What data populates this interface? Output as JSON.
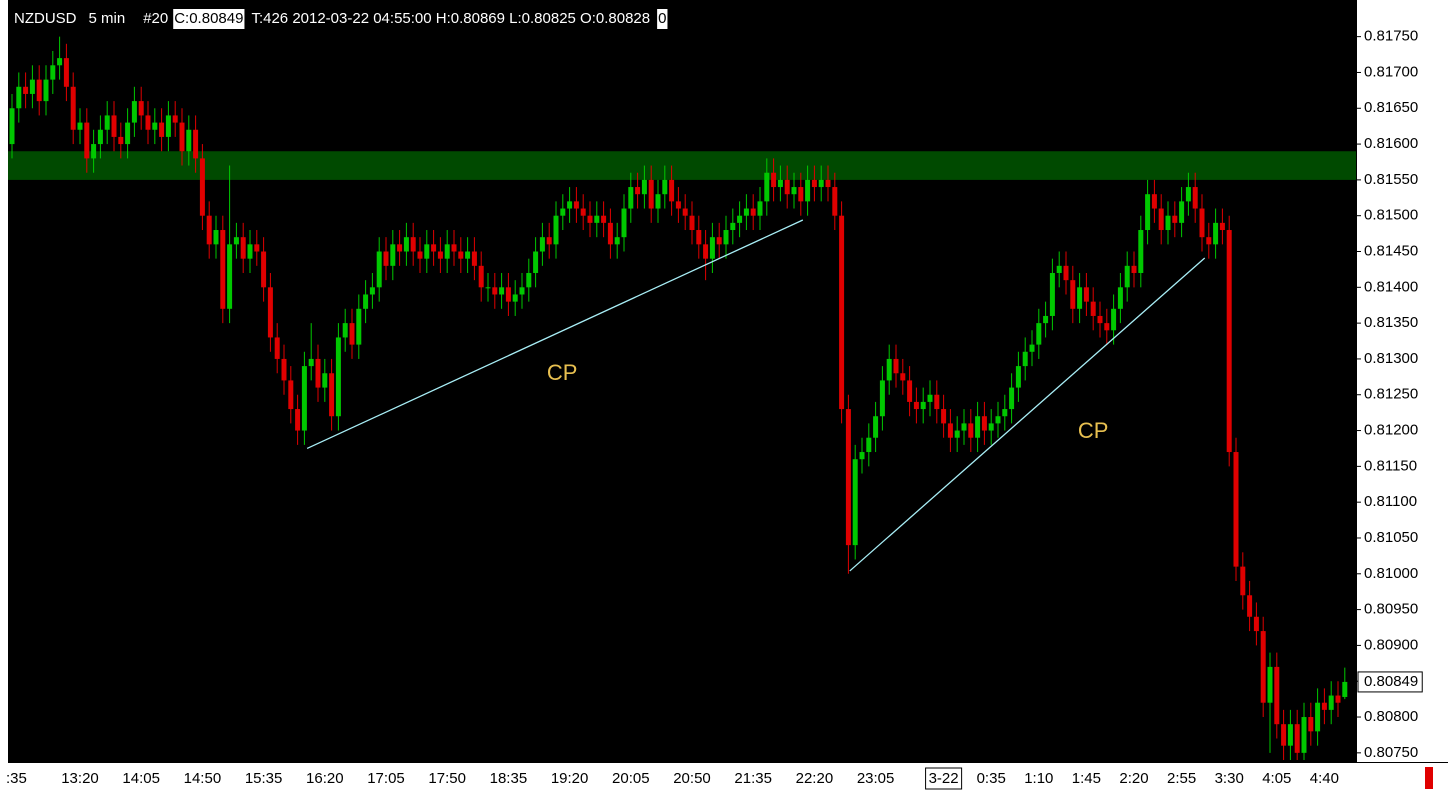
{
  "header": {
    "symbol": "NZDUSD",
    "interval": "5 min",
    "bar": "#20",
    "close_label": "C:0.80849",
    "info": "T:426 2012-03-22 04:55:00 H:0.80869 L:0.80825 O:0.80828",
    "trail": "0"
  },
  "chart_data": {
    "type": "candlestick",
    "categories": [
      null,
      ":35",
      null,
      null,
      null,
      null,
      null,
      null,
      null,
      null,
      "13:20",
      null,
      null,
      null,
      null,
      null,
      null,
      null,
      null,
      "14:05",
      null,
      null,
      null,
      null,
      null,
      null,
      null,
      null,
      "14:50",
      null,
      null,
      null,
      null,
      null,
      null,
      null,
      null,
      "15:35",
      null,
      null,
      null,
      null,
      null,
      null,
      null,
      null,
      "16:20",
      null,
      null,
      null,
      null,
      null,
      null,
      null,
      null,
      "17:05",
      null,
      null,
      null,
      null,
      null,
      null,
      null,
      null,
      "17:50",
      null,
      null,
      null,
      null,
      null,
      null,
      null,
      null,
      "18:35",
      null,
      null,
      null,
      null,
      null,
      null,
      null,
      null,
      "19:20",
      null,
      null,
      null,
      null,
      null,
      null,
      null,
      null,
      "20:05",
      null,
      null,
      null,
      null,
      null,
      null,
      null,
      null,
      "20:50",
      null,
      null,
      null,
      null,
      null,
      null,
      null,
      null,
      "21:35",
      null,
      null,
      null,
      null,
      null,
      null,
      null,
      null,
      "22:20",
      null,
      null,
      null,
      null,
      null,
      null,
      null,
      null,
      "23:05",
      null,
      null,
      null,
      null,
      null,
      null,
      null,
      null,
      null,
      "3-22",
      null,
      null,
      null,
      null,
      null,
      null,
      "0:35",
      null,
      null,
      null,
      null,
      null,
      null,
      "1:10",
      null,
      null,
      null,
      null,
      null,
      null,
      "1:45",
      null,
      null,
      null,
      null,
      null,
      null,
      "2:20",
      null,
      null,
      null,
      null,
      null,
      null,
      "2:55",
      null,
      null,
      null,
      null,
      null,
      null,
      "3:30",
      null,
      null,
      null,
      null,
      null,
      null,
      "4:05",
      null,
      null,
      null,
      null,
      null,
      null,
      "4:40",
      null,
      null,
      null
    ],
    "open": [
      0.816,
      0.8165,
      0.8168,
      0.8167,
      0.8169,
      0.8166,
      0.8169,
      0.8171,
      0.8172,
      0.8168,
      0.8162,
      0.8163,
      0.8158,
      0.816,
      0.8162,
      0.8164,
      0.8161,
      0.816,
      0.8163,
      0.8166,
      0.8164,
      0.8162,
      0.8163,
      0.8161,
      0.8164,
      0.8163,
      0.8159,
      0.8162,
      0.8158,
      0.815,
      0.8146,
      0.8148,
      0.8137,
      0.8146,
      0.8147,
      0.8144,
      0.8146,
      0.8145,
      0.814,
      0.8133,
      0.813,
      0.8127,
      0.8123,
      0.812,
      0.8129,
      0.813,
      0.8126,
      0.8128,
      0.8122,
      0.8133,
      0.8135,
      0.8132,
      0.8137,
      0.8139,
      0.814,
      0.8145,
      0.8143,
      0.8146,
      0.8145,
      0.8147,
      0.8145,
      0.8144,
      0.8146,
      0.8145,
      0.8144,
      0.8146,
      0.8145,
      0.8144,
      0.8145,
      0.8143,
      0.814,
      0.814,
      0.8139,
      0.814,
      0.8138,
      0.8139,
      0.814,
      0.8142,
      0.8145,
      0.8147,
      0.8146,
      0.815,
      0.8151,
      0.8152,
      0.8151,
      0.815,
      0.8149,
      0.815,
      0.8149,
      0.8146,
      0.8147,
      0.8151,
      0.8154,
      0.8153,
      0.8155,
      0.8151,
      0.8153,
      0.8155,
      0.8152,
      0.8151,
      0.815,
      0.8148,
      0.8146,
      0.8144,
      0.8147,
      0.8146,
      0.8148,
      0.8149,
      0.815,
      0.8151,
      0.815,
      0.8152,
      0.8156,
      0.8154,
      0.8155,
      0.8153,
      0.8154,
      0.8152,
      0.8155,
      0.8154,
      0.8155,
      0.8154,
      0.815,
      0.8123,
      0.8104,
      0.8116,
      0.8117,
      0.8119,
      0.8122,
      0.8127,
      0.813,
      0.8128,
      0.8127,
      0.8124,
      0.8123,
      0.8124,
      0.8125,
      0.8123,
      0.8121,
      0.8119,
      0.812,
      0.8121,
      0.8119,
      0.8122,
      0.812,
      0.8121,
      0.8122,
      0.8123,
      0.8126,
      0.8129,
      0.8131,
      0.8132,
      0.8135,
      0.8136,
      0.8142,
      0.8143,
      0.8141,
      0.8137,
      0.814,
      0.8138,
      0.8136,
      0.8135,
      0.8134,
      0.8137,
      0.814,
      0.8143,
      0.8142,
      0.8148,
      0.8153,
      0.8151,
      0.8148,
      0.815,
      0.8149,
      0.8152,
      0.8154,
      0.8151,
      0.8147,
      0.8146,
      0.8149,
      0.8148,
      0.8117,
      0.8101,
      0.8097,
      0.8094,
      0.8092,
      0.8082,
      0.8087,
      0.8079,
      0.8076,
      0.8079,
      0.8075,
      0.808,
      0.8078,
      0.8082,
      0.8081,
      0.8083,
      0.80828
    ],
    "high": [
      0.8167,
      0.817,
      0.817,
      0.8171,
      0.8171,
      0.8171,
      0.8173,
      0.8175,
      0.8174,
      0.817,
      0.8165,
      0.8165,
      0.8162,
      0.8164,
      0.8166,
      0.8166,
      0.8163,
      0.8165,
      0.8168,
      0.8168,
      0.8166,
      0.8165,
      0.8165,
      0.8166,
      0.8166,
      0.8165,
      0.8164,
      0.8164,
      0.816,
      0.8152,
      0.815,
      0.815,
      0.8157,
      0.8149,
      0.8149,
      0.8148,
      0.8148,
      0.8147,
      0.8142,
      0.8135,
      0.8132,
      0.8129,
      0.8125,
      0.8131,
      0.8135,
      0.8132,
      0.813,
      0.813,
      0.8135,
      0.8137,
      0.8137,
      0.8139,
      0.8141,
      0.8142,
      0.8147,
      0.8147,
      0.8148,
      0.8148,
      0.8149,
      0.8149,
      0.8147,
      0.8148,
      0.8148,
      0.8147,
      0.8148,
      0.8148,
      0.8147,
      0.8147,
      0.8147,
      0.8145,
      0.8142,
      0.8142,
      0.8142,
      0.8142,
      0.8141,
      0.8142,
      0.8144,
      0.8147,
      0.8149,
      0.8149,
      0.8152,
      0.8153,
      0.8154,
      0.8154,
      0.8153,
      0.8152,
      0.8152,
      0.8152,
      0.8151,
      0.8149,
      0.8153,
      0.8156,
      0.8156,
      0.8157,
      0.8157,
      0.8155,
      0.8157,
      0.8157,
      0.8154,
      0.8153,
      0.8152,
      0.815,
      0.8148,
      0.8149,
      0.8149,
      0.815,
      0.8151,
      0.8152,
      0.8153,
      0.8153,
      0.8154,
      0.8158,
      0.8158,
      0.8157,
      0.8157,
      0.8156,
      0.8156,
      0.8157,
      0.8157,
      0.8157,
      0.8157,
      0.8156,
      0.8152,
      0.8125,
      0.8118,
      0.8119,
      0.8121,
      0.8124,
      0.8129,
      0.8132,
      0.8132,
      0.813,
      0.8129,
      0.8126,
      0.8126,
      0.8127,
      0.8127,
      0.8125,
      0.8123,
      0.8122,
      0.8123,
      0.8123,
      0.8124,
      0.8124,
      0.8123,
      0.8124,
      0.8125,
      0.8128,
      0.8131,
      0.8133,
      0.8134,
      0.8137,
      0.8138,
      0.8144,
      0.8145,
      0.8145,
      0.8143,
      0.8142,
      0.8142,
      0.814,
      0.8138,
      0.8137,
      0.8139,
      0.8142,
      0.8145,
      0.8145,
      0.815,
      0.8155,
      0.8155,
      0.8153,
      0.8152,
      0.8152,
      0.8154,
      0.8156,
      0.8156,
      0.8153,
      0.8149,
      0.8151,
      0.8151,
      0.815,
      0.8119,
      0.8103,
      0.8099,
      0.8096,
      0.8094,
      0.8089,
      0.8089,
      0.8081,
      0.8081,
      0.8081,
      0.8082,
      0.8082,
      0.8084,
      0.8084,
      0.8085,
      0.8085,
      0.80869
    ],
    "low": [
      0.8158,
      0.8163,
      0.8165,
      0.8165,
      0.8164,
      0.8164,
      0.8167,
      0.8169,
      0.8166,
      0.816,
      0.816,
      0.8156,
      0.8156,
      0.8158,
      0.816,
      0.8159,
      0.8158,
      0.8158,
      0.8161,
      0.8162,
      0.816,
      0.816,
      0.8159,
      0.8159,
      0.8161,
      0.8157,
      0.8157,
      0.8156,
      0.8148,
      0.8144,
      0.8144,
      0.8135,
      0.8135,
      0.8144,
      0.8142,
      0.8142,
      0.8143,
      0.8138,
      0.8131,
      0.8128,
      0.8125,
      0.8121,
      0.8118,
      0.8118,
      0.8127,
      0.8124,
      0.8124,
      0.812,
      0.812,
      0.8131,
      0.813,
      0.813,
      0.8135,
      0.8137,
      0.8138,
      0.8141,
      0.8141,
      0.8143,
      0.8143,
      0.8143,
      0.8142,
      0.8142,
      0.8143,
      0.8142,
      0.8142,
      0.8143,
      0.8142,
      0.8142,
      0.8141,
      0.8138,
      0.8138,
      0.8137,
      0.8137,
      0.8136,
      0.8136,
      0.8137,
      0.8138,
      0.814,
      0.8143,
      0.8144,
      0.8144,
      0.8148,
      0.8149,
      0.8149,
      0.8148,
      0.8147,
      0.8147,
      0.8147,
      0.8144,
      0.8144,
      0.8145,
      0.8149,
      0.8151,
      0.8151,
      0.8149,
      0.8149,
      0.8151,
      0.815,
      0.8149,
      0.8148,
      0.8146,
      0.8144,
      0.8141,
      0.8142,
      0.8144,
      0.8144,
      0.8146,
      0.8147,
      0.8148,
      0.8148,
      0.8148,
      0.815,
      0.8152,
      0.8152,
      0.8151,
      0.8151,
      0.815,
      0.815,
      0.8152,
      0.8152,
      0.8152,
      0.8148,
      0.8121,
      0.81,
      0.8102,
      0.8114,
      0.8115,
      0.8117,
      0.812,
      0.8125,
      0.8126,
      0.8125,
      0.8122,
      0.8121,
      0.8121,
      0.8122,
      0.8121,
      0.8119,
      0.8117,
      0.8117,
      0.8118,
      0.8117,
      0.8117,
      0.8118,
      0.8118,
      0.8119,
      0.812,
      0.8121,
      0.8124,
      0.8127,
      0.8129,
      0.813,
      0.8133,
      0.8134,
      0.814,
      0.8139,
      0.8135,
      0.8135,
      0.8136,
      0.8134,
      0.8133,
      0.8132,
      0.8132,
      0.8135,
      0.8138,
      0.814,
      0.814,
      0.8146,
      0.8149,
      0.8146,
      0.8146,
      0.8147,
      0.8147,
      0.815,
      0.8149,
      0.8145,
      0.8144,
      0.8144,
      0.8146,
      0.8115,
      0.8099,
      0.8095,
      0.8092,
      0.809,
      0.808,
      0.8075,
      0.8077,
      0.8074,
      0.8074,
      0.8074,
      0.8074,
      0.8076,
      0.8076,
      0.8079,
      0.8079,
      0.808,
      0.80825
    ],
    "close": [
      0.8165,
      0.8168,
      0.8167,
      0.8169,
      0.8166,
      0.8169,
      0.8171,
      0.8172,
      0.8168,
      0.8162,
      0.8163,
      0.8158,
      0.816,
      0.8162,
      0.8164,
      0.8161,
      0.816,
      0.8163,
      0.8166,
      0.8164,
      0.8162,
      0.8163,
      0.8161,
      0.8164,
      0.8163,
      0.8159,
      0.8162,
      0.8158,
      0.815,
      0.8146,
      0.8148,
      0.8137,
      0.8146,
      0.8147,
      0.8144,
      0.8146,
      0.8145,
      0.814,
      0.8133,
      0.813,
      0.8127,
      0.8123,
      0.812,
      0.8129,
      0.813,
      0.8126,
      0.8128,
      0.8122,
      0.8133,
      0.8135,
      0.8132,
      0.8137,
      0.8139,
      0.814,
      0.8145,
      0.8143,
      0.8146,
      0.8145,
      0.8147,
      0.8145,
      0.8144,
      0.8146,
      0.8145,
      0.8144,
      0.8146,
      0.8145,
      0.8144,
      0.8145,
      0.8143,
      0.814,
      0.814,
      0.8139,
      0.814,
      0.8138,
      0.8139,
      0.814,
      0.8142,
      0.8145,
      0.8147,
      0.8146,
      0.815,
      0.8151,
      0.8152,
      0.8151,
      0.815,
      0.8149,
      0.815,
      0.8149,
      0.8146,
      0.8147,
      0.8151,
      0.8154,
      0.8153,
      0.8155,
      0.8151,
      0.8153,
      0.8155,
      0.8152,
      0.8151,
      0.815,
      0.8148,
      0.8146,
      0.8144,
      0.8147,
      0.8146,
      0.8148,
      0.8149,
      0.815,
      0.8151,
      0.815,
      0.8152,
      0.8156,
      0.8154,
      0.8155,
      0.8153,
      0.8154,
      0.8152,
      0.8155,
      0.8154,
      0.8155,
      0.8154,
      0.815,
      0.8123,
      0.8104,
      0.8116,
      0.8117,
      0.8119,
      0.8122,
      0.8127,
      0.813,
      0.8128,
      0.8127,
      0.8124,
      0.8123,
      0.8124,
      0.8125,
      0.8123,
      0.8121,
      0.8119,
      0.812,
      0.8121,
      0.8119,
      0.8122,
      0.812,
      0.8121,
      0.8122,
      0.8123,
      0.8126,
      0.8129,
      0.8131,
      0.8132,
      0.8135,
      0.8136,
      0.8142,
      0.8143,
      0.8141,
      0.8137,
      0.814,
      0.8138,
      0.8136,
      0.8135,
      0.8134,
      0.8137,
      0.814,
      0.8143,
      0.8142,
      0.8148,
      0.8153,
      0.8151,
      0.8148,
      0.815,
      0.8149,
      0.8152,
      0.8154,
      0.8151,
      0.8147,
      0.8146,
      0.8149,
      0.8148,
      0.8117,
      0.8101,
      0.8097,
      0.8094,
      0.8092,
      0.8082,
      0.8087,
      0.8079,
      0.8076,
      0.8079,
      0.8075,
      0.808,
      0.8078,
      0.8082,
      0.8081,
      0.8083,
      0.8082,
      0.80849
    ],
    "up_color": "#00c800",
    "down_color": "#e00000",
    "ylim": [
      0.8074,
      0.8179
    ],
    "yticks": [
      {
        "value": 0.8175,
        "label": "0.81750"
      },
      {
        "value": 0.817,
        "label": "0.81700"
      },
      {
        "value": 0.8165,
        "label": "0.81650"
      },
      {
        "value": 0.816,
        "label": "0.81600"
      },
      {
        "value": 0.8155,
        "label": "0.81550"
      },
      {
        "value": 0.815,
        "label": "0.81500"
      },
      {
        "value": 0.8145,
        "label": "0.81450"
      },
      {
        "value": 0.814,
        "label": "0.81400"
      },
      {
        "value": 0.8135,
        "label": "0.81350"
      },
      {
        "value": 0.813,
        "label": "0.81300"
      },
      {
        "value": 0.8125,
        "label": "0.81250"
      },
      {
        "value": 0.812,
        "label": "0.81200"
      },
      {
        "value": 0.8115,
        "label": "0.81150"
      },
      {
        "value": 0.811,
        "label": "0.81100"
      },
      {
        "value": 0.8105,
        "label": "0.81050"
      },
      {
        "value": 0.81,
        "label": "0.81000"
      },
      {
        "value": 0.8095,
        "label": "0.80950"
      },
      {
        "value": 0.809,
        "label": "0.80900"
      },
      {
        "value": 0.8085,
        "label": "0.80850"
      },
      {
        "value": 0.808,
        "label": "0.80800"
      },
      {
        "value": 0.8075,
        "label": "0.80750"
      }
    ],
    "last_price": {
      "value": 0.80849,
      "label": "0.80849"
    },
    "zone": {
      "from": 0.8155,
      "to": 0.8159,
      "color": "#004a00"
    },
    "trend_lines": [
      {
        "x": [
          43.4,
          116.3
        ],
        "y": [
          0.81175,
          0.81494
        ]
      },
      {
        "x": [
          123.2,
          175.4
        ],
        "y": [
          0.81004,
          0.81441
        ]
      }
    ],
    "line_color": "#a8eef6",
    "annotations": [
      {
        "text": "CP",
        "x": 80.9,
        "y": 0.81279
      },
      {
        "text": "CP",
        "x": 159,
        "y": 0.81198
      }
    ],
    "annotation_color": "#e8c050"
  }
}
